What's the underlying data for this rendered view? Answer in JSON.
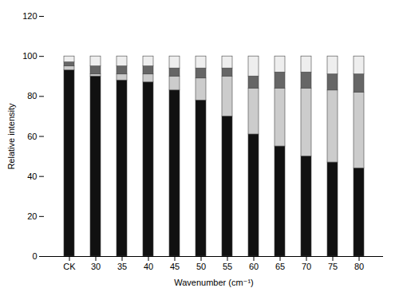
{
  "chart_data": {
    "type": "bar",
    "stacked": true,
    "xlabel": "Wavenumber (cm⁻¹)",
    "ylabel": "Relative intensity",
    "categories": [
      "CK",
      "30",
      "35",
      "40",
      "45",
      "50",
      "55",
      "60",
      "65",
      "70",
      "75",
      "80"
    ],
    "series": [
      {
        "color": "#111111",
        "values": [
          93,
          90,
          88,
          87,
          83,
          78,
          70,
          61,
          55,
          50,
          47,
          44
        ]
      },
      {
        "color": "#cccccc",
        "values": [
          2,
          1,
          3,
          4,
          7,
          11,
          20,
          23,
          29,
          34,
          36,
          38
        ]
      },
      {
        "color": "#666666",
        "values": [
          2,
          4,
          4,
          4,
          4,
          5,
          4,
          6,
          8,
          8,
          8,
          9
        ]
      },
      {
        "color": "#eeeeee",
        "values": [
          3,
          5,
          5,
          5,
          6,
          6,
          6,
          10,
          8,
          8,
          9,
          9
        ]
      }
    ],
    "ylim": [
      0,
      120
    ],
    "yticks": [
      0,
      20,
      40,
      60,
      80,
      100,
      120
    ],
    "grid": false
  }
}
